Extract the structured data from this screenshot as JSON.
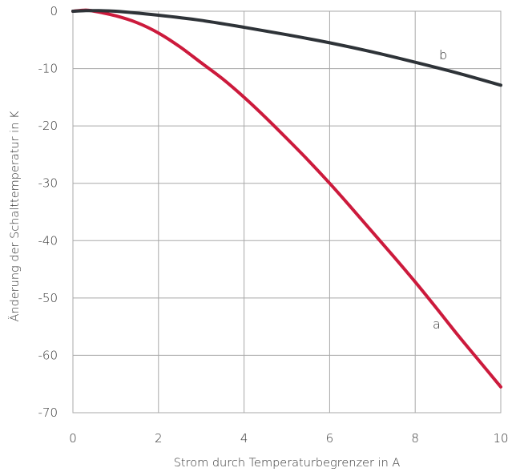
{
  "chart_data": {
    "type": "line",
    "title": "",
    "xlabel": "Strom durch Temperaturbegrenzer in A",
    "ylabel": "Änderung der Schalttemperatur in K",
    "xlim": [
      0,
      10
    ],
    "ylim": [
      -70,
      0
    ],
    "xticks": [
      "0",
      "2",
      "4",
      "6",
      "8",
      "10"
    ],
    "yticks": [
      "0",
      "-10",
      "-20",
      "-30",
      "-40",
      "-50",
      "-60",
      "-70"
    ],
    "grid": true,
    "series": [
      {
        "name": "a",
        "color": "#cc1a3c",
        "x": [
          0,
          0.3,
          0.5,
          1,
          1.5,
          2,
          2.5,
          3,
          3.5,
          4,
          4.5,
          5,
          5.5,
          6,
          6.5,
          7,
          7.5,
          8,
          8.5,
          9,
          9.5,
          10
        ],
        "y": [
          0,
          0.2,
          0,
          -0.8,
          -2,
          -3.8,
          -6.2,
          -9,
          -11.8,
          -15,
          -18.5,
          -22.2,
          -26,
          -30,
          -34.2,
          -38.5,
          -42.8,
          -47.2,
          -51.8,
          -56.5,
          -61,
          -65.5
        ]
      },
      {
        "name": "b",
        "color": "#2e3338",
        "x": [
          0,
          0.3,
          0.5,
          1,
          2,
          3,
          4,
          5,
          6,
          7,
          8,
          9,
          10
        ],
        "y": [
          0,
          0.1,
          0.1,
          0,
          -0.7,
          -1.6,
          -2.8,
          -4.1,
          -5.5,
          -7.1,
          -8.9,
          -10.8,
          -12.9
        ]
      }
    ]
  }
}
